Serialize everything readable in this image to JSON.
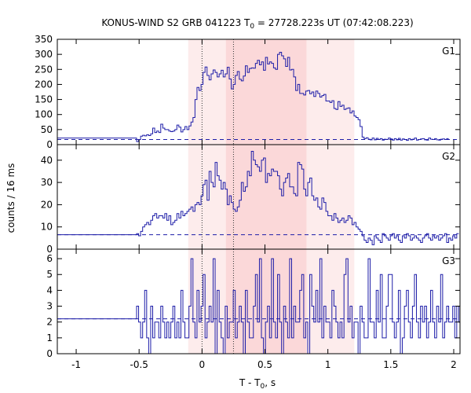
{
  "chart_data": {
    "type": "line",
    "title": {
      "prefix": "KONUS-WIND S2 GRB 041223 T",
      "sub": "0",
      "suffix": " = 27728.223s UT (07:42:08.223)"
    },
    "xlabel": {
      "prefix": "T - T",
      "sub": "0",
      "suffix": ", s"
    },
    "ylabel": "counts / 16 ms",
    "xlim": [
      -1.15,
      2.05
    ],
    "x_ticks": [
      -1,
      -0.5,
      0,
      0.5,
      1,
      1.5,
      2
    ],
    "x_tick_labels": [
      "-1",
      "-0.5",
      "0",
      "0.5",
      "1",
      "1.5",
      "2"
    ],
    "light_intervals": [
      [
        -0.11,
        1.21
      ]
    ],
    "dark_intervals": [
      [
        0.19,
        0.83
      ]
    ],
    "vlines": [
      0,
      0.25
    ],
    "colors": {
      "series": "#1d1da8",
      "light_shade": "#fdecec",
      "dark_shade": "#fbd8d9"
    },
    "panels": [
      {
        "label": "G1",
        "ylim": [
          0,
          350
        ],
        "yticks": [
          0,
          50,
          100,
          150,
          200,
          250,
          300,
          350
        ],
        "background": 17,
        "pre_level": 22,
        "data_start": -0.52,
        "bin_width": 0.016,
        "values": [
          10,
          17,
          28,
          31,
          29,
          33,
          30,
          36,
          55,
          40,
          45,
          40,
          68,
          55,
          50,
          50,
          45,
          43,
          45,
          50,
          65,
          58,
          42,
          50,
          60,
          50,
          62,
          75,
          90,
          150,
          190,
          180,
          200,
          240,
          258,
          230,
          215,
          235,
          248,
          240,
          225,
          235,
          247,
          225,
          235,
          257,
          218,
          185,
          200,
          230,
          243,
          217,
          212,
          228,
          262,
          240,
          253,
          255,
          254,
          270,
          280,
          265,
          275,
          247,
          290,
          268,
          275,
          270,
          255,
          250,
          300,
          307,
          295,
          285,
          260,
          290,
          248,
          250,
          225,
          180,
          200,
          170,
          170,
          165,
          178,
          180,
          169,
          175,
          160,
          178,
          170,
          158,
          163,
          167,
          145,
          145,
          140,
          146,
          120,
          117,
          143,
          127,
          131,
          117,
          120,
          122,
          105,
          112,
          95,
          90,
          83,
          60,
          25,
          20,
          23,
          18,
          16,
          22,
          16,
          21,
          17,
          20,
          15,
          18,
          17,
          22,
          19,
          15,
          20,
          16,
          21,
          15,
          19,
          17,
          14,
          20,
          16,
          18,
          22,
          15,
          17,
          19,
          20,
          16,
          15,
          22,
          18,
          17,
          20,
          16,
          15,
          18,
          19,
          17,
          20
        ]
      },
      {
        "label": "G2",
        "ylim": [
          0,
          47
        ],
        "yticks": [
          0,
          10,
          20,
          30,
          40
        ],
        "background": 6.5,
        "pre_level": 6.5,
        "data_start": -0.52,
        "bin_width": 0.016,
        "values": [
          7,
          6,
          8,
          10,
          11,
          12,
          11,
          13,
          15,
          16,
          14,
          15,
          15,
          14,
          16,
          13,
          15,
          11,
          12,
          13,
          16,
          14,
          17,
          15,
          16,
          17,
          18,
          19,
          17,
          20,
          21,
          20,
          24,
          29,
          31,
          22,
          35,
          30,
          28,
          39,
          33,
          31,
          27,
          30,
          27,
          20,
          24,
          21,
          18,
          17,
          19,
          22,
          30,
          26,
          28,
          35,
          33,
          44,
          40,
          38,
          37,
          35,
          40,
          41,
          30,
          34,
          33,
          36,
          35,
          35,
          33,
          27,
          24,
          30,
          32,
          34,
          28,
          28,
          25,
          24,
          39,
          38,
          36,
          27,
          24,
          30,
          32,
          24,
          22,
          23,
          19,
          18,
          23,
          21,
          17,
          15,
          15,
          13,
          16,
          14,
          12,
          13,
          14,
          12,
          13,
          15,
          14,
          11,
          12,
          10,
          9,
          8,
          6,
          4,
          3,
          5,
          4,
          2,
          6,
          5,
          4,
          3,
          7,
          6,
          5,
          4,
          6,
          7,
          5,
          6,
          4,
          3,
          6,
          5,
          7,
          6,
          4,
          5,
          6,
          5,
          4,
          3,
          5,
          6,
          7,
          5,
          4,
          6,
          5,
          6,
          4,
          5,
          6,
          7,
          3,
          5,
          4,
          6,
          5,
          7
        ]
      },
      {
        "label": "G3",
        "ylim": [
          0,
          6.6
        ],
        "yticks": [
          0,
          1,
          2,
          3,
          4,
          5,
          6
        ],
        "background": 2.2,
        "pre_level": 2.2,
        "data_start": -0.52,
        "bin_width": 0.016,
        "values": [
          3,
          2,
          1,
          2,
          4,
          1,
          0,
          3,
          1,
          2,
          2,
          1,
          3,
          2,
          1,
          2,
          1,
          2,
          3,
          1,
          2,
          1,
          4,
          2,
          1,
          1,
          3,
          6,
          2,
          1,
          4,
          2,
          3,
          5,
          1,
          2,
          3,
          2,
          6,
          0,
          4,
          2,
          1,
          0,
          3,
          1,
          2,
          2,
          4,
          1,
          2,
          3,
          2,
          0,
          4,
          2,
          1,
          1,
          3,
          5,
          2,
          6,
          1,
          0,
          2,
          3,
          1,
          6,
          2,
          1,
          5,
          2,
          0,
          3,
          2,
          1,
          6,
          1,
          3,
          2,
          2,
          4,
          5,
          1,
          2,
          0,
          5,
          3,
          2,
          4,
          2,
          6,
          1,
          3,
          2,
          2,
          1,
          4,
          3,
          2,
          1,
          2,
          1,
          5,
          6,
          2,
          3,
          1,
          2,
          2,
          0,
          3,
          2,
          1,
          1,
          6,
          2,
          2,
          1,
          4,
          2,
          5,
          1,
          1,
          3,
          5,
          5,
          2,
          1,
          2,
          4,
          0,
          1,
          3,
          4,
          2,
          1,
          3,
          5,
          2,
          1,
          3,
          2,
          3,
          1,
          2,
          4,
          2,
          1,
          3,
          2,
          5,
          1,
          2,
          3,
          2,
          2,
          3,
          1,
          3,
          2,
          4,
          2
        ]
      }
    ]
  }
}
